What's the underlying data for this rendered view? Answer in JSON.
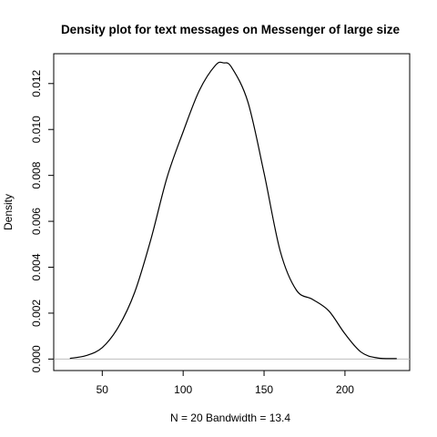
{
  "chart_data": {
    "type": "line",
    "title": "Density plot for text messages on Messenger of large size",
    "xlabel": "N = 20   Bandwidth = 13.4",
    "ylabel": "Density",
    "xlim": [
      20,
      240
    ],
    "ylim": [
      -0.0005,
      0.0133
    ],
    "x_ticks": [
      50,
      100,
      150,
      200
    ],
    "y_ticks": [
      0.0,
      0.002,
      0.004,
      0.006,
      0.008,
      0.01,
      0.012
    ],
    "y_tick_labels": [
      "0.000",
      "0.002",
      "0.004",
      "0.006",
      "0.008",
      "0.010",
      "0.012"
    ],
    "grid": false,
    "legend": "none",
    "baseline": 0,
    "colors": {
      "line": "#000000",
      "baseline": "#bebebe",
      "frame": "#000000"
    },
    "series": [
      {
        "x": [
          30,
          40,
          50,
          60,
          70,
          80,
          90,
          100,
          110,
          120,
          125,
          130,
          140,
          150,
          160,
          170,
          180,
          190,
          200,
          210,
          220,
          232
        ],
        "values": [
          3e-05,
          0.00015,
          0.0005,
          0.0014,
          0.0029,
          0.0052,
          0.0079,
          0.0099,
          0.0117,
          0.0128,
          0.0129,
          0.0127,
          0.0112,
          0.0081,
          0.0047,
          0.003,
          0.0026,
          0.0021,
          0.0011,
          0.0003,
          5e-05,
          2e-05
        ]
      }
    ]
  }
}
